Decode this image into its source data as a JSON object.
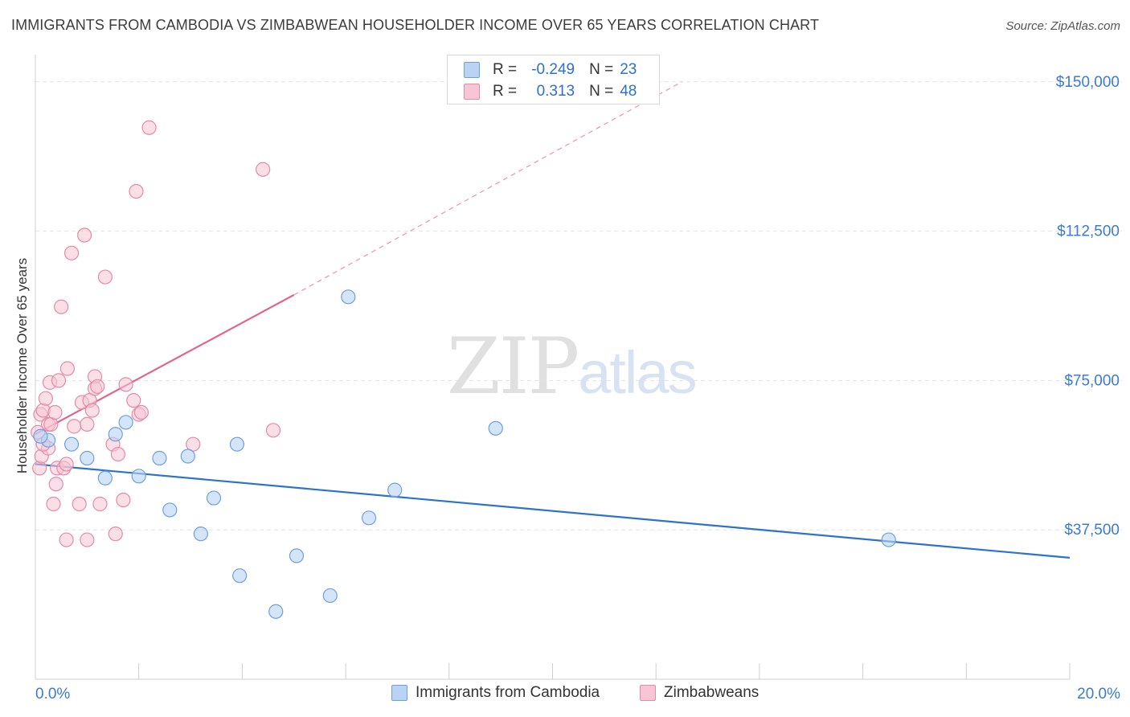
{
  "title": "IMMIGRANTS FROM CAMBODIA VS ZIMBABWEAN HOUSEHOLDER INCOME OVER 65 YEARS CORRELATION CHART",
  "source": "Source: ZipAtlas.com",
  "watermark": {
    "zip": "ZIP",
    "atlas": "atlas"
  },
  "legend": {
    "rows": [
      {
        "r_label": "R =",
        "r_value": "-0.249",
        "n_label": "N =",
        "n_value": "23"
      },
      {
        "r_label": "R =",
        "r_value": "0.313",
        "n_label": "N =",
        "n_value": "48"
      }
    ]
  },
  "colors": {
    "blue_fill": "#b8d3f3",
    "blue_stroke": "#6f9fe0",
    "blue_line": "#2f72c9",
    "pink_fill": "#f8c5d4",
    "pink_stroke": "#e58aa7",
    "pink_line": "#e06690",
    "grid": "#e2e2e2",
    "axis_text": "#3b7bd1"
  },
  "chart_data": {
    "type": "scatter",
    "title": "IMMIGRANTS FROM CAMBODIA VS ZIMBABWEAN HOUSEHOLDER INCOME OVER 65 YEARS CORRELATION CHART",
    "xlabel": "",
    "ylabel": "Householder Income Over 65 years",
    "xlim": [
      0,
      20
    ],
    "ylim": [
      0,
      155000
    ],
    "x_tick_labels": [
      "0.0%",
      "20.0%"
    ],
    "y_ticks": [
      37500,
      75000,
      112500,
      150000
    ],
    "y_tick_labels": [
      "$37,500",
      "$75,000",
      "$112,500",
      "$150,000"
    ],
    "legend_position": "bottom",
    "series": [
      {
        "name": "Immigrants from Cambodia",
        "color": "blue",
        "points": [
          [
            0.25,
            60000
          ],
          [
            0.7,
            59000
          ],
          [
            1.0,
            55500
          ],
          [
            1.35,
            50500
          ],
          [
            1.55,
            61500
          ],
          [
            1.75,
            64500
          ],
          [
            2.0,
            51000
          ],
          [
            2.4,
            55500
          ],
          [
            2.6,
            42500
          ],
          [
            2.95,
            56000
          ],
          [
            3.2,
            36500
          ],
          [
            3.45,
            45500
          ],
          [
            3.9,
            59000
          ],
          [
            3.95,
            26000
          ],
          [
            4.65,
            17000
          ],
          [
            5.05,
            31000
          ],
          [
            5.7,
            21000
          ],
          [
            6.05,
            96000
          ],
          [
            6.45,
            40500
          ],
          [
            6.95,
            47500
          ],
          [
            8.9,
            63000
          ],
          [
            16.5,
            35000
          ],
          [
            0.1,
            61000
          ]
        ],
        "trend": {
          "x": [
            0.0,
            20.0
          ],
          "y": [
            54000,
            30500
          ]
        }
      },
      {
        "name": "Zimbabweans",
        "color": "pink",
        "points": [
          [
            0.05,
            62000
          ],
          [
            0.08,
            53000
          ],
          [
            0.1,
            66500
          ],
          [
            0.12,
            56000
          ],
          [
            0.15,
            67500
          ],
          [
            0.2,
            70500
          ],
          [
            0.25,
            64000
          ],
          [
            0.25,
            58000
          ],
          [
            0.28,
            74500
          ],
          [
            0.3,
            64000
          ],
          [
            0.35,
            44000
          ],
          [
            0.38,
            67000
          ],
          [
            0.4,
            49000
          ],
          [
            0.42,
            53000
          ],
          [
            0.45,
            75000
          ],
          [
            0.5,
            93500
          ],
          [
            0.55,
            53000
          ],
          [
            0.6,
            35000
          ],
          [
            0.6,
            54000
          ],
          [
            0.62,
            78000
          ],
          [
            0.7,
            107000
          ],
          [
            0.75,
            63500
          ],
          [
            0.85,
            44000
          ],
          [
            0.9,
            69500
          ],
          [
            0.95,
            111500
          ],
          [
            1.0,
            35000
          ],
          [
            1.0,
            64000
          ],
          [
            1.05,
            70000
          ],
          [
            1.1,
            67500
          ],
          [
            1.15,
            76000
          ],
          [
            1.15,
            73000
          ],
          [
            1.2,
            73500
          ],
          [
            1.25,
            44000
          ],
          [
            1.35,
            101000
          ],
          [
            1.5,
            59000
          ],
          [
            1.55,
            36500
          ],
          [
            1.6,
            56500
          ],
          [
            1.7,
            45000
          ],
          [
            1.75,
            74000
          ],
          [
            1.9,
            70000
          ],
          [
            1.95,
            122500
          ],
          [
            2.0,
            66500
          ],
          [
            2.05,
            67000
          ],
          [
            2.2,
            138500
          ],
          [
            3.05,
            59000
          ],
          [
            4.4,
            128000
          ],
          [
            4.6,
            62500
          ],
          [
            0.15,
            59000
          ]
        ],
        "trend": {
          "x": [
            0.0,
            5.0
          ],
          "y": [
            61500,
            96500
          ]
        },
        "trend_extension": {
          "x": [
            5.0,
            12.5
          ],
          "y": [
            96500,
            150000
          ]
        }
      }
    ]
  }
}
